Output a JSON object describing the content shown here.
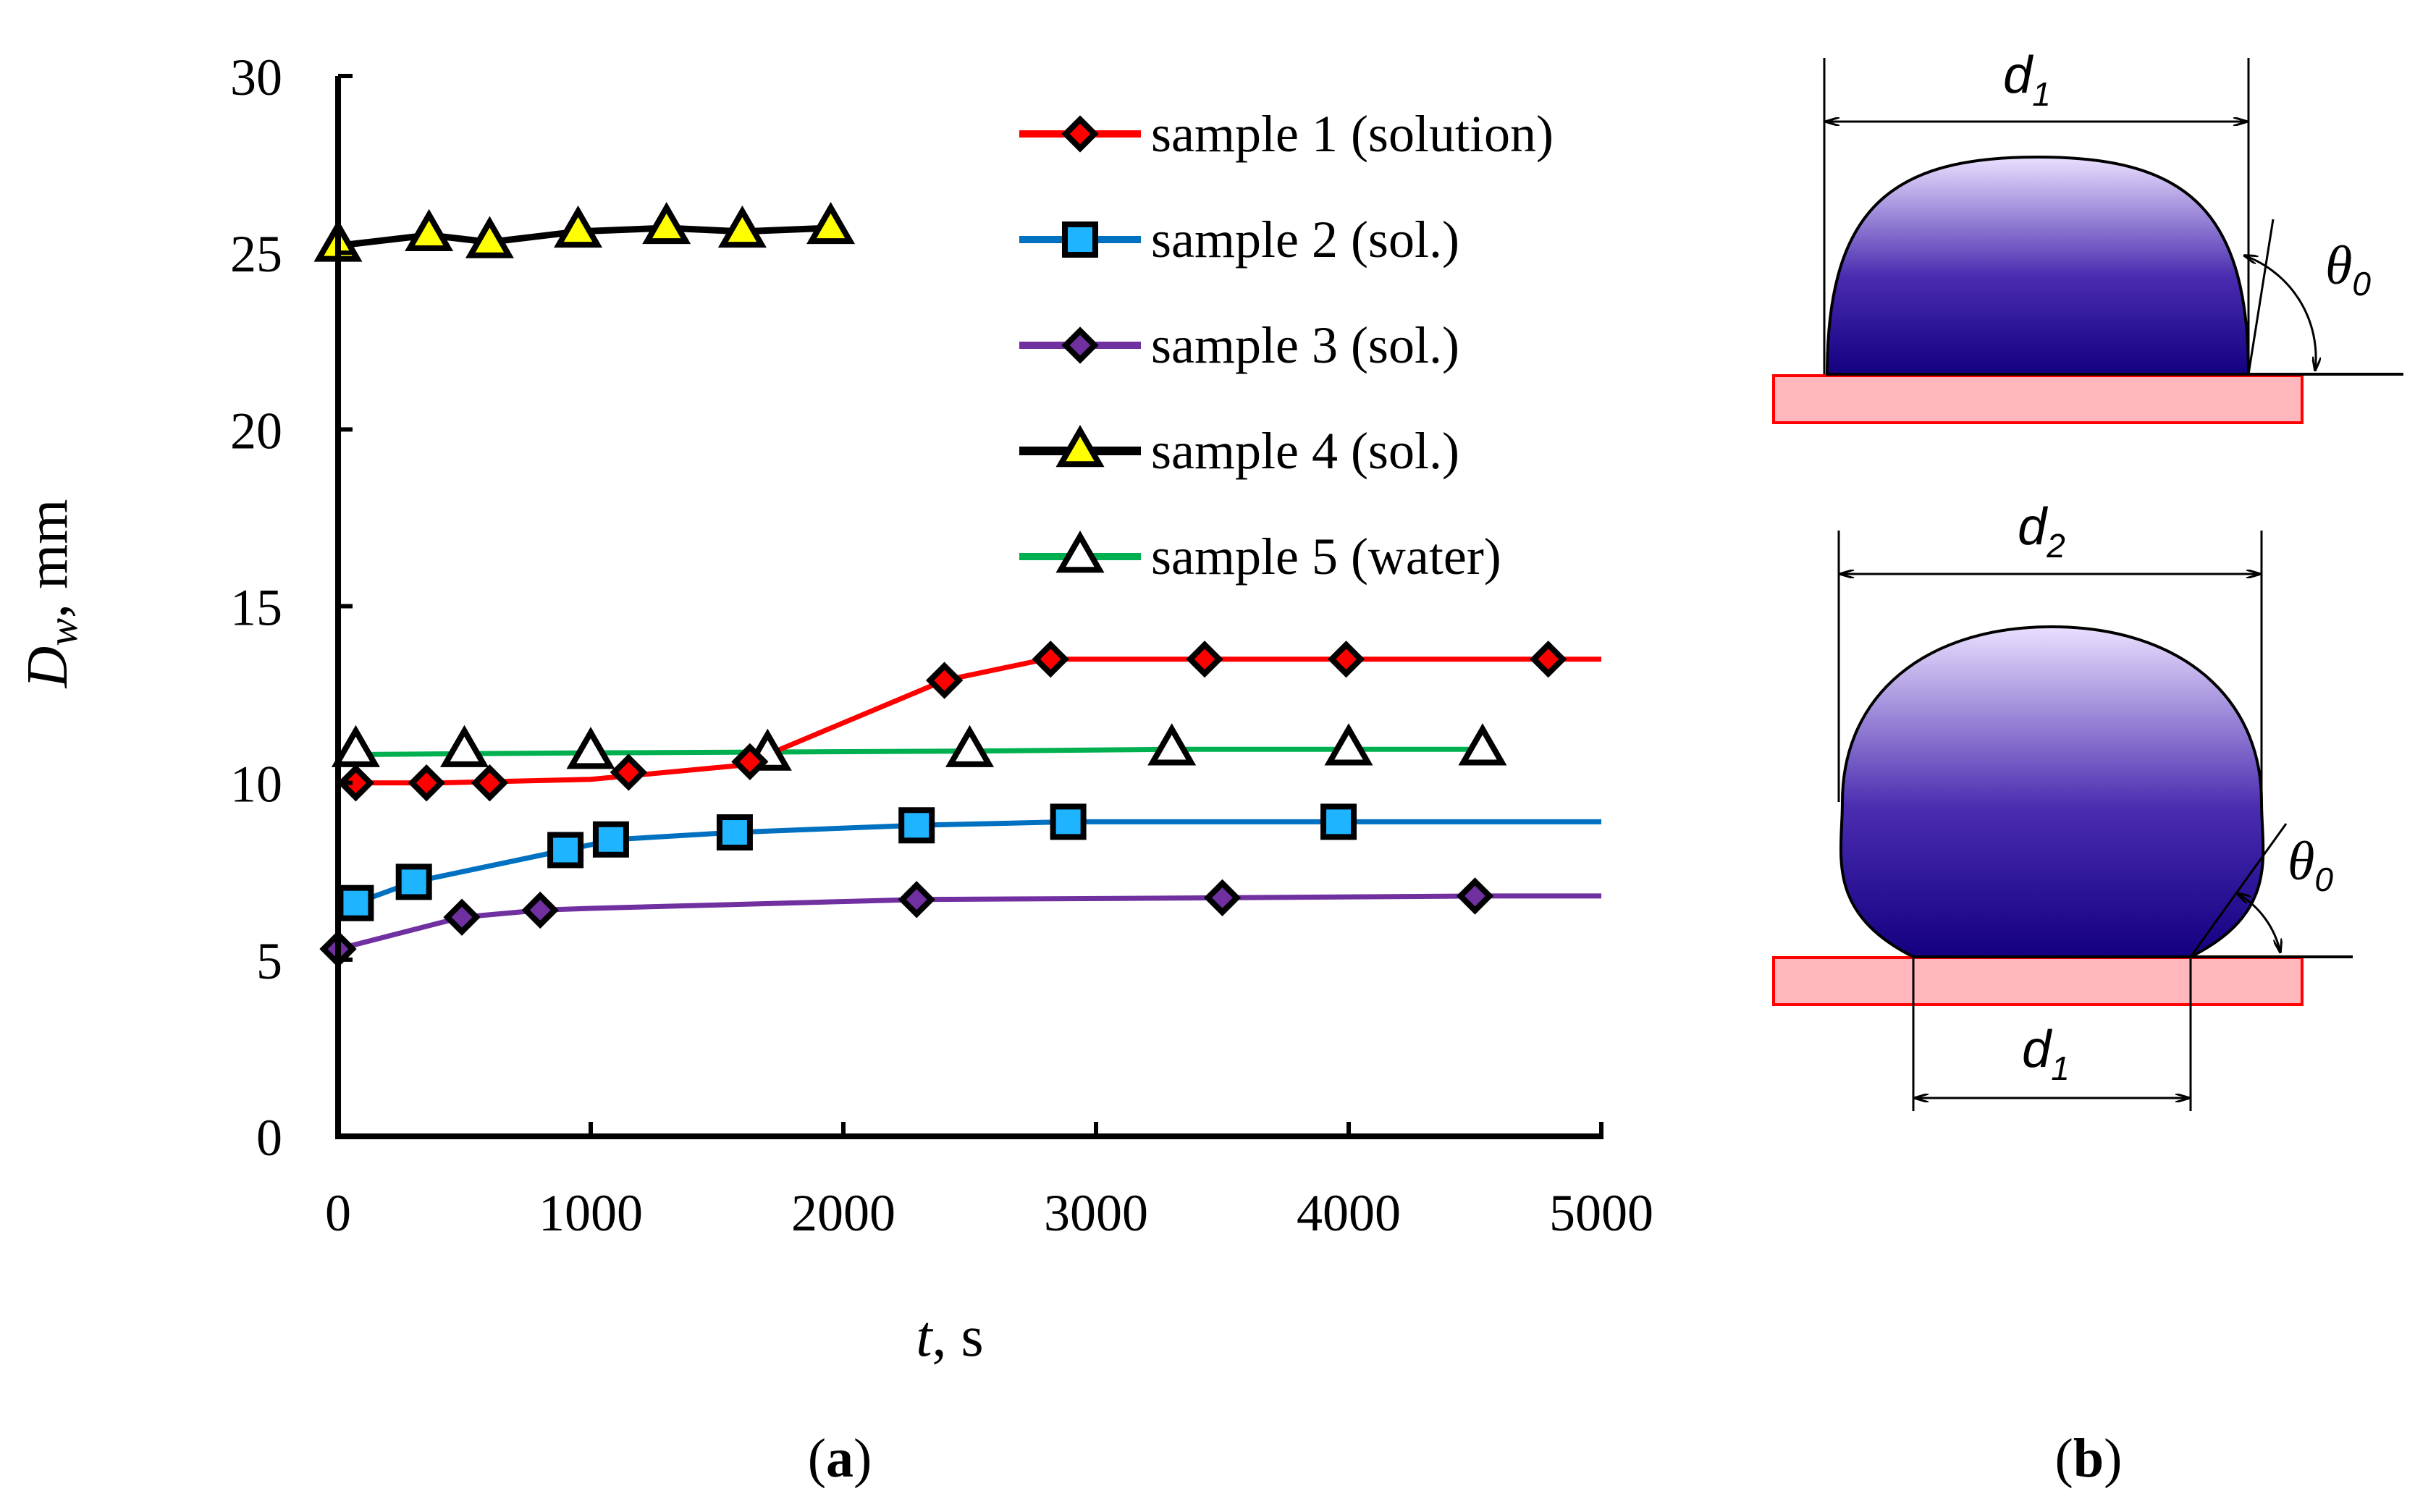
{
  "chart_data": {
    "type": "line",
    "xlabel": {
      "var": "t",
      "unit": ", s"
    },
    "ylabel": {
      "var": "D",
      "sub": "w",
      "unit": ", mm"
    },
    "xlim": [
      0,
      5000
    ],
    "ylim": [
      0,
      30
    ],
    "xticks": [
      "0",
      "1000",
      "2000",
      "3000",
      "4000",
      "5000"
    ],
    "yticks": [
      "0",
      "5",
      "10",
      "15",
      "20",
      "25",
      "30"
    ],
    "xtick_values": [
      0,
      1000,
      2000,
      3000,
      4000,
      5000
    ],
    "ytick_values": [
      0,
      5,
      10,
      15,
      20,
      25,
      30
    ],
    "legend_position": "top-right",
    "series": [
      {
        "name": "sample 1 (solution)",
        "line_color": "#ff0000",
        "marker": "diamond",
        "marker_fill": "#ff0000",
        "line": [
          [
            0,
            10.0
          ],
          [
            400,
            10.0
          ],
          [
            1000,
            10.1
          ],
          [
            1600,
            10.5
          ],
          [
            2400,
            12.9
          ],
          [
            2800,
            13.5
          ],
          [
            5000,
            13.5
          ]
        ],
        "markers": [
          [
            70,
            10.0
          ],
          [
            350,
            10.0
          ],
          [
            600,
            10.0
          ],
          [
            1150,
            10.3
          ],
          [
            1630,
            10.6
          ],
          [
            2400,
            12.9
          ],
          [
            2820,
            13.5
          ],
          [
            3430,
            13.5
          ],
          [
            3990,
            13.5
          ],
          [
            4790,
            13.5
          ]
        ]
      },
      {
        "name": "sample 2 (sol.)",
        "line_color": "#0070c0",
        "marker": "square",
        "marker_fill": "#1eb4ff",
        "line": [
          [
            70,
            6.6
          ],
          [
            300,
            7.2
          ],
          [
            900,
            8.1
          ],
          [
            1100,
            8.4
          ],
          [
            1570,
            8.6
          ],
          [
            2290,
            8.8
          ],
          [
            2890,
            8.9
          ],
          [
            3960,
            8.9
          ],
          [
            5000,
            8.9
          ]
        ],
        "markers": [
          [
            70,
            6.6
          ],
          [
            300,
            7.2
          ],
          [
            900,
            8.1
          ],
          [
            1080,
            8.4
          ],
          [
            1570,
            8.6
          ],
          [
            2290,
            8.8
          ],
          [
            2890,
            8.9
          ],
          [
            3960,
            8.9
          ]
        ]
      },
      {
        "name": "sample 3 (sol.)",
        "line_color": "#7030a0",
        "marker": "diamond",
        "marker_fill": "#7030a0",
        "line": [
          [
            0,
            5.3
          ],
          [
            490,
            6.2
          ],
          [
            800,
            6.4
          ],
          [
            1000,
            6.45
          ],
          [
            2290,
            6.7
          ],
          [
            3500,
            6.75
          ],
          [
            4500,
            6.8
          ],
          [
            5000,
            6.8
          ]
        ],
        "markers": [
          [
            0,
            5.3
          ],
          [
            490,
            6.2
          ],
          [
            800,
            6.4
          ],
          [
            2290,
            6.7
          ],
          [
            3500,
            6.75
          ],
          [
            4500,
            6.8
          ]
        ]
      },
      {
        "name": "sample 4 (sol.)",
        "line_color": "#000000",
        "marker": "triangle",
        "marker_fill": "#ffff00",
        "line": [
          [
            0,
            25.2
          ],
          [
            360,
            25.5
          ],
          [
            600,
            25.3
          ],
          [
            950,
            25.6
          ],
          [
            1300,
            25.7
          ],
          [
            1600,
            25.6
          ],
          [
            1950,
            25.7
          ]
        ],
        "markers": [
          [
            0,
            25.2
          ],
          [
            360,
            25.5
          ],
          [
            600,
            25.3
          ],
          [
            950,
            25.6
          ],
          [
            1300,
            25.7
          ],
          [
            1600,
            25.6
          ],
          [
            1950,
            25.7
          ]
        ]
      },
      {
        "name": "sample 5 (water)",
        "line_color": "#00b050",
        "marker": "triangle",
        "marker_fill": "#ffffff",
        "line": [
          [
            0,
            10.8
          ],
          [
            1000,
            10.85
          ],
          [
            2500,
            10.9
          ],
          [
            3300,
            10.95
          ],
          [
            4500,
            10.95
          ],
          [
            4550,
            10.95
          ]
        ],
        "markers": [
          [
            70,
            10.9
          ],
          [
            500,
            10.9
          ],
          [
            1000,
            10.85
          ],
          [
            1700,
            10.8
          ],
          [
            2500,
            10.9
          ],
          [
            3300,
            10.95
          ],
          [
            4000,
            10.95
          ],
          [
            4530,
            10.95
          ]
        ]
      }
    ]
  },
  "diagram": {
    "top": {
      "width_label": "d",
      "width_sub": "1",
      "angle_label": "θ",
      "angle_sub": "0"
    },
    "bottom": {
      "width_label": "d",
      "width_sub": "2",
      "base_label": "d",
      "base_sub": "1",
      "angle_label": "θ",
      "angle_sub": "0"
    },
    "drop_color_top": "#eae0ff",
    "drop_color_bottom": "#140080",
    "substrate_fill": "#ffb6bd",
    "substrate_stroke": "#ff0000"
  },
  "panel_labels": {
    "a": {
      "open": "(",
      "letter": "a",
      "close": ")"
    },
    "b": {
      "open": "(",
      "letter": "b",
      "close": ")"
    }
  }
}
